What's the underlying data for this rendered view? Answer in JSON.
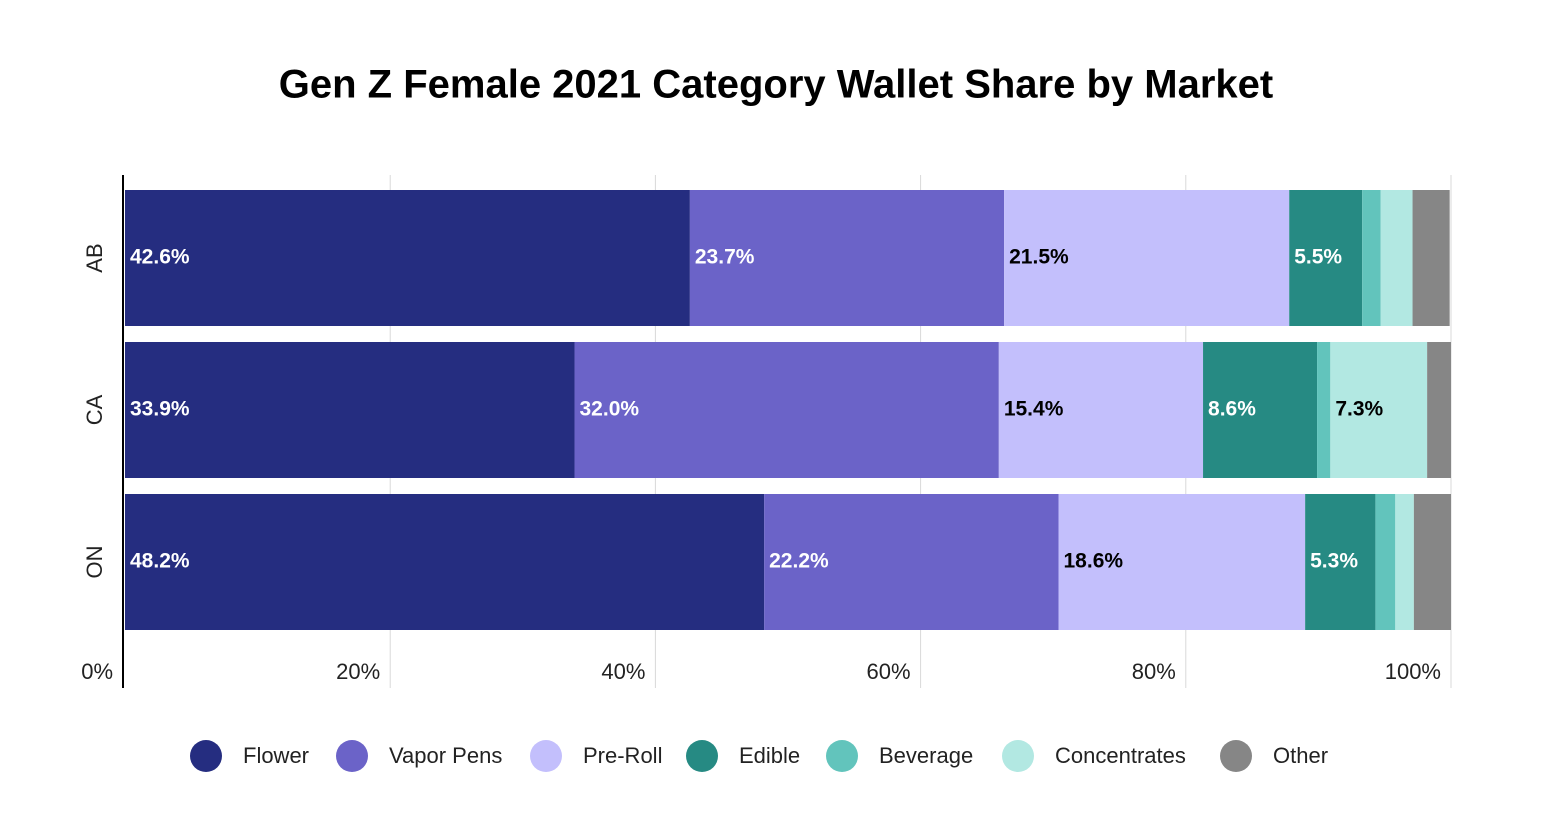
{
  "chart_data": {
    "type": "stacked-bar-horizontal",
    "title": "Gen Z Female 2021 Category Wallet Share by Market",
    "categories": [
      "AB",
      "CA",
      "ON"
    ],
    "series": [
      {
        "name": "Flower",
        "color": "#252d80",
        "values": [
          42.6,
          33.9,
          48.2
        ],
        "value_labels": [
          "42.6%",
          "33.9%",
          "48.2%"
        ]
      },
      {
        "name": "Vapor Pens",
        "color": "#6b63c8",
        "values": [
          23.7,
          32.0,
          22.2
        ],
        "value_labels": [
          "23.7%",
          "32.0%",
          "22.2%"
        ]
      },
      {
        "name": "Pre-Roll",
        "color": "#c3bffc",
        "values": [
          21.5,
          15.4,
          18.6
        ],
        "value_labels": [
          "21.5%",
          "15.4%",
          "18.6%"
        ]
      },
      {
        "name": "Edible",
        "color": "#268a83",
        "values": [
          5.5,
          8.6,
          5.3
        ],
        "value_labels": [
          "5.5%",
          "8.6%",
          "5.3%"
        ]
      },
      {
        "name": "Beverage",
        "color": "#62c4bc",
        "values": [
          1.4,
          1.0,
          1.5
        ],
        "value_labels": [
          null,
          null,
          null
        ]
      },
      {
        "name": "Concentrates",
        "color": "#b2e8e2",
        "values": [
          2.4,
          7.3,
          1.4
        ],
        "value_labels": [
          null,
          "7.3%",
          null
        ]
      },
      {
        "name": "Other",
        "color": "#868686",
        "values": [
          2.8,
          1.8,
          2.8
        ],
        "value_labels": [
          null,
          null,
          null
        ]
      }
    ],
    "xlim": [
      0,
      100
    ],
    "xticks": [
      {
        "value": 0,
        "label": "0%"
      },
      {
        "value": 20,
        "label": "20%"
      },
      {
        "value": 40,
        "label": "40%"
      },
      {
        "value": 60,
        "label": "60%"
      },
      {
        "value": 80,
        "label": "80%"
      },
      {
        "value": 100,
        "label": "100%"
      }
    ],
    "grid": true,
    "legend": "bottom"
  }
}
